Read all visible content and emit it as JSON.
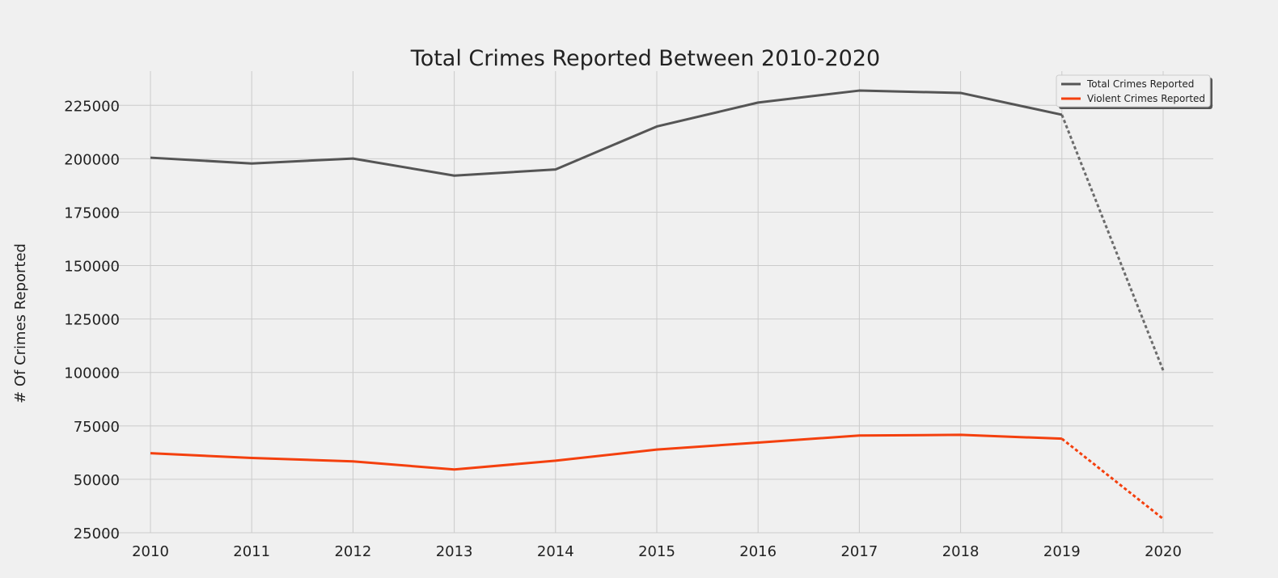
{
  "chart_data": {
    "type": "line",
    "title": "Total Crimes Reported Between 2010-2020",
    "xlabel": "",
    "ylabel": "# Of Crimes Reported",
    "x": [
      2010,
      2011,
      2012,
      2013,
      2014,
      2015,
      2016,
      2017,
      2018,
      2019,
      2020
    ],
    "ylim": [
      25000,
      241000
    ],
    "yticks": [
      25000,
      50000,
      75000,
      100000,
      125000,
      150000,
      175000,
      200000,
      225000
    ],
    "grid": true,
    "legend_position": "top-right",
    "series": [
      {
        "name": "Total Crimes Reported",
        "color": "#555555",
        "values": [
          200500,
          197800,
          200100,
          192100,
          195000,
          215100,
          226300,
          231900,
          230800,
          220600,
          101000
        ],
        "dashed_from_index": 9
      },
      {
        "name": "Violent Crimes Reported",
        "color": "#f4400e",
        "values": [
          62200,
          60000,
          58400,
          54600,
          58700,
          63900,
          67200,
          70500,
          70800,
          69000,
          31500
        ],
        "dashed_from_index": 9
      }
    ]
  }
}
